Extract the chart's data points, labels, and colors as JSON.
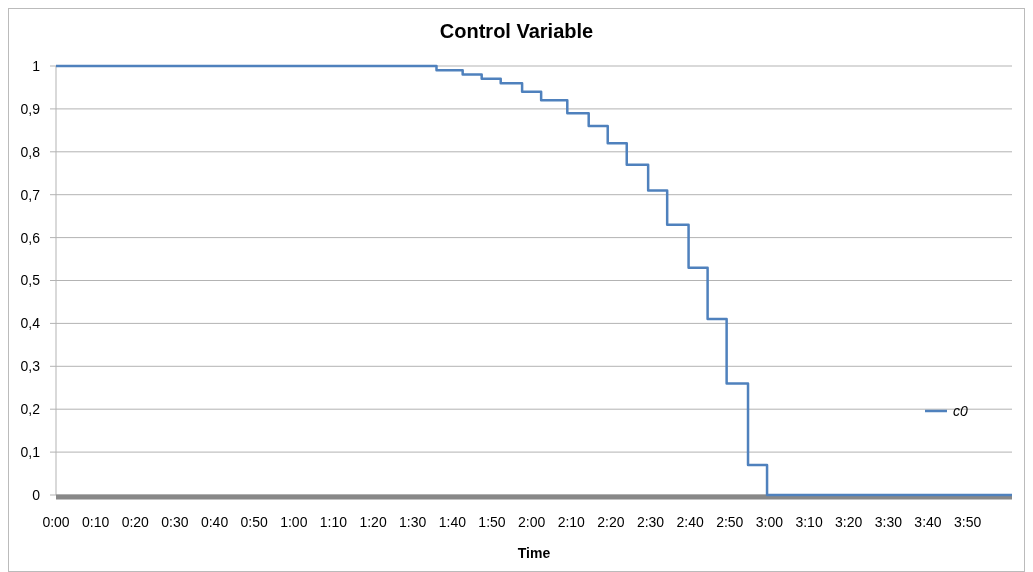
{
  "chart_data": {
    "type": "step",
    "title": "Control Variable",
    "xlabel": "Time",
    "x": [
      0,
      1.6,
      1.71,
      1.79,
      1.87,
      1.96,
      2.04,
      2.15,
      2.24,
      2.32,
      2.4,
      2.49,
      2.57,
      2.66,
      2.74,
      2.82,
      2.91,
      2.99,
      4.02
    ],
    "series": [
      {
        "name": "c0",
        "color": "#4f81bd",
        "values": [
          1,
          0.99,
          0.98,
          0.97,
          0.96,
          0.94,
          0.92,
          0.89,
          0.86,
          0.82,
          0.77,
          0.71,
          0.63,
          0.53,
          0.41,
          0.26,
          0.07,
          0,
          0
        ]
      }
    ],
    "xlim": [
      0,
      4.02
    ],
    "xticks": [
      {
        "value": 0,
        "label": "0:00"
      },
      {
        "value": 0.1667,
        "label": "0:10"
      },
      {
        "value": 0.3333,
        "label": "0:20"
      },
      {
        "value": 0.5,
        "label": "0:30"
      },
      {
        "value": 0.6667,
        "label": "0:40"
      },
      {
        "value": 0.8333,
        "label": "0:50"
      },
      {
        "value": 1,
        "label": "1:00"
      },
      {
        "value": 1.1667,
        "label": "1:10"
      },
      {
        "value": 1.3333,
        "label": "1:20"
      },
      {
        "value": 1.5,
        "label": "1:30"
      },
      {
        "value": 1.6667,
        "label": "1:40"
      },
      {
        "value": 1.8333,
        "label": "1:50"
      },
      {
        "value": 2,
        "label": "2:00"
      },
      {
        "value": 2.1667,
        "label": "2:10"
      },
      {
        "value": 2.3333,
        "label": "2:20"
      },
      {
        "value": 2.5,
        "label": "2:30"
      },
      {
        "value": 2.6667,
        "label": "2:40"
      },
      {
        "value": 2.8333,
        "label": "2:50"
      },
      {
        "value": 3,
        "label": "3:00"
      },
      {
        "value": 3.1667,
        "label": "3:10"
      },
      {
        "value": 3.3333,
        "label": "3:20"
      },
      {
        "value": 3.5,
        "label": "3:30"
      },
      {
        "value": 3.6667,
        "label": "3:40"
      },
      {
        "value": 3.8333,
        "label": "3:50"
      }
    ],
    "ylim": [
      0,
      1
    ],
    "yticks": [
      {
        "value": 0,
        "label": "0"
      },
      {
        "value": 0.1,
        "label": "0,1"
      },
      {
        "value": 0.2,
        "label": "0,2"
      },
      {
        "value": 0.3,
        "label": "0,3"
      },
      {
        "value": 0.4,
        "label": "0,4"
      },
      {
        "value": 0.5,
        "label": "0,5"
      },
      {
        "value": 0.6,
        "label": "0,6"
      },
      {
        "value": 0.7,
        "label": "0,7"
      },
      {
        "value": 0.8,
        "label": "0,8"
      },
      {
        "value": 0.9,
        "label": "0,9"
      },
      {
        "value": 1,
        "label": "1"
      }
    ],
    "grid": "y",
    "legend": "right",
    "marker": "none",
    "line_style": "solid"
  }
}
